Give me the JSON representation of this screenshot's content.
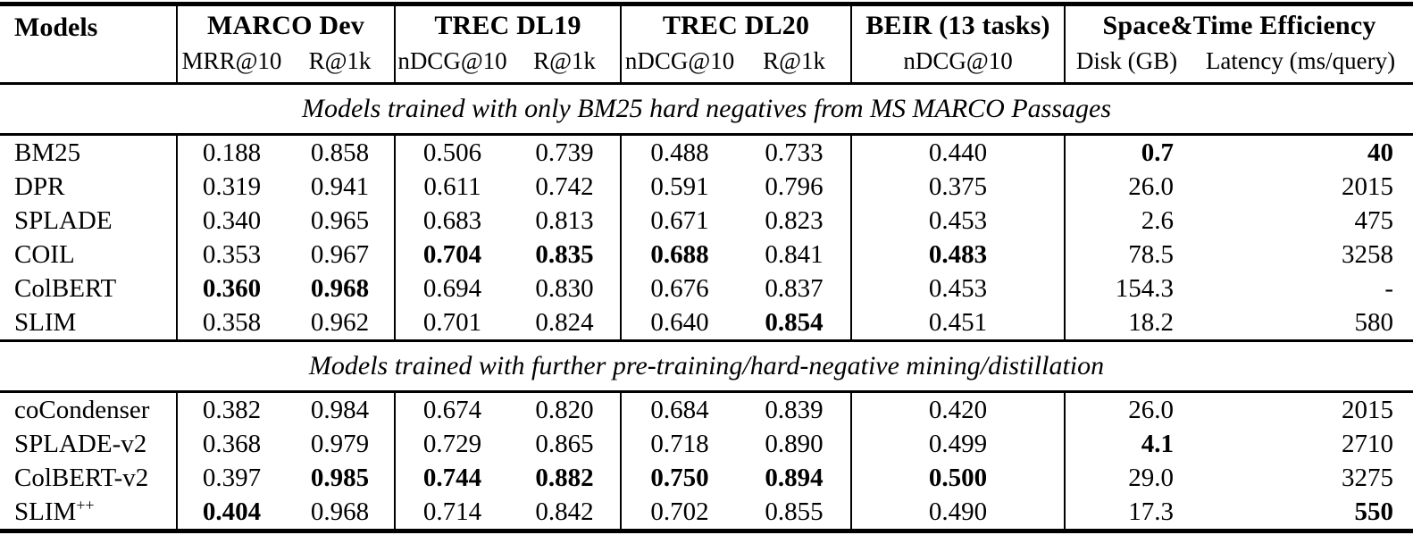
{
  "table": {
    "header": {
      "models_label": "Models",
      "groups": [
        {
          "label": "MARCO Dev",
          "subs": [
            "MRR@10",
            "R@1k"
          ]
        },
        {
          "label": "TREC DL19",
          "subs": [
            "nDCG@10",
            "R@1k"
          ]
        },
        {
          "label": "TREC DL20",
          "subs": [
            "nDCG@10",
            "R@1k"
          ]
        },
        {
          "label": "BEIR (13 tasks)",
          "subs": [
            "nDCG@10"
          ]
        },
        {
          "label": "Space&Time Efficiency",
          "subs": [
            "Disk (GB)",
            "Latency (ms/query)"
          ]
        }
      ]
    },
    "sections": [
      {
        "title": "Models trained with only BM25 hard negatives from MS MARCO Passages",
        "rows": [
          {
            "model": "BM25",
            "values": [
              "0.188",
              "0.858",
              "0.506",
              "0.739",
              "0.488",
              "0.733",
              "0.440",
              "0.7",
              "40"
            ],
            "bold": [
              7,
              8
            ]
          },
          {
            "model": "DPR",
            "values": [
              "0.319",
              "0.941",
              "0.611",
              "0.742",
              "0.591",
              "0.796",
              "0.375",
              "26.0",
              "2015"
            ],
            "bold": []
          },
          {
            "model": "SPLADE",
            "values": [
              "0.340",
              "0.965",
              "0.683",
              "0.813",
              "0.671",
              "0.823",
              "0.453",
              "2.6",
              "475"
            ],
            "bold": []
          },
          {
            "model": "COIL",
            "values": [
              "0.353",
              "0.967",
              "0.704",
              "0.835",
              "0.688",
              "0.841",
              "0.483",
              "78.5",
              "3258"
            ],
            "bold": [
              2,
              3,
              4,
              6
            ]
          },
          {
            "model": "ColBERT",
            "values": [
              "0.360",
              "0.968",
              "0.694",
              "0.830",
              "0.676",
              "0.837",
              "0.453",
              "154.3",
              "-"
            ],
            "bold": [
              0,
              1
            ]
          },
          {
            "model": "SLIM",
            "values": [
              "0.358",
              "0.962",
              "0.701",
              "0.824",
              "0.640",
              "0.854",
              "0.451",
              "18.2",
              "580"
            ],
            "bold": [
              5
            ]
          }
        ]
      },
      {
        "title": "Models trained with further pre-training/hard-negative mining/distillation",
        "rows": [
          {
            "model": "coCondenser",
            "values": [
              "0.382",
              "0.984",
              "0.674",
              "0.820",
              "0.684",
              "0.839",
              "0.420",
              "26.0",
              "2015"
            ],
            "bold": []
          },
          {
            "model": "SPLADE-v2",
            "values": [
              "0.368",
              "0.979",
              "0.729",
              "0.865",
              "0.718",
              "0.890",
              "0.499",
              "4.1",
              "2710"
            ],
            "bold": [
              7
            ]
          },
          {
            "model": "ColBERT-v2",
            "values": [
              "0.397",
              "0.985",
              "0.744",
              "0.882",
              "0.750",
              "0.894",
              "0.500",
              "29.0",
              "3275"
            ],
            "bold": [
              1,
              2,
              3,
              4,
              5,
              6
            ]
          },
          {
            "model": "SLIM",
            "model_sup": "++",
            "values": [
              "0.404",
              "0.968",
              "0.714",
              "0.842",
              "0.702",
              "0.855",
              "0.490",
              "17.3",
              "550"
            ],
            "bold": [
              0,
              8
            ]
          }
        ]
      }
    ]
  }
}
